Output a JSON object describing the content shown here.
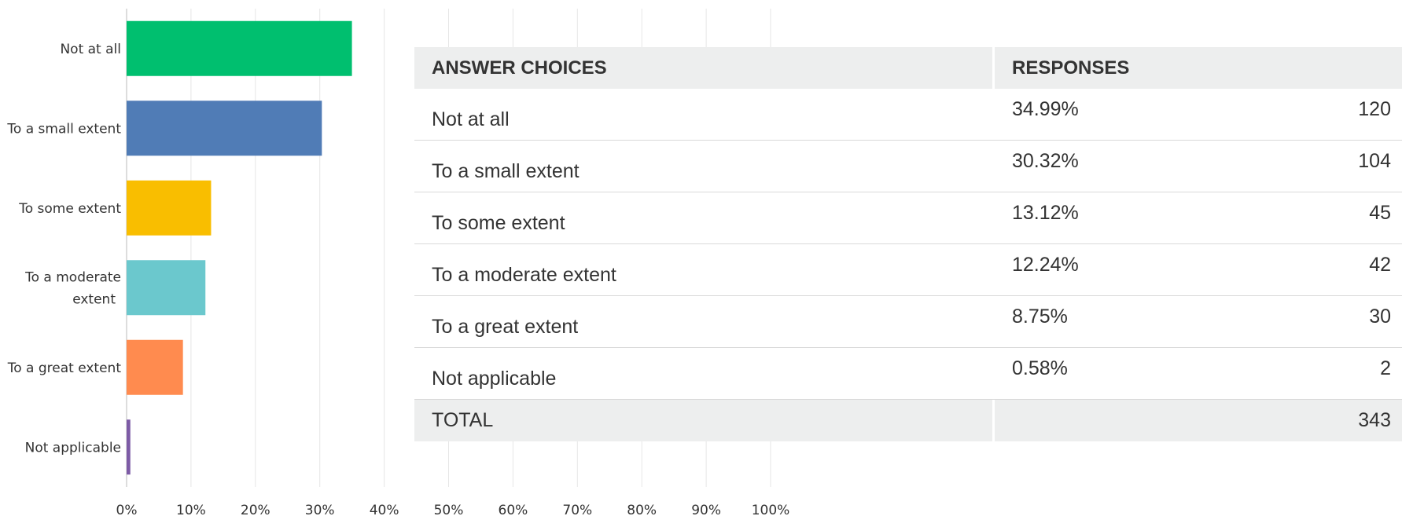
{
  "chart_data": {
    "type": "bar",
    "orientation": "horizontal",
    "categories": [
      "Not at all",
      "To a small extent",
      "To some extent",
      "To a moderate extent",
      "To a great extent",
      "Not applicable"
    ],
    "values": [
      34.99,
      30.32,
      13.12,
      12.24,
      8.75,
      0.58
    ],
    "colors": [
      "#00bf6f",
      "#507cb6",
      "#f9be00",
      "#6bc8cd",
      "#ff8b4f",
      "#7d5ba6"
    ],
    "xlim": [
      0,
      100
    ],
    "xticks": [
      {
        "value": 0,
        "label": "0%"
      },
      {
        "value": 10,
        "label": "10%"
      },
      {
        "value": 20,
        "label": "20%"
      },
      {
        "value": 30,
        "label": "30%"
      },
      {
        "value": 40,
        "label": "40%"
      },
      {
        "value": 50,
        "label": "50%"
      },
      {
        "value": 60,
        "label": "60%"
      },
      {
        "value": 70,
        "label": "70%"
      },
      {
        "value": 80,
        "label": "80%"
      },
      {
        "value": 90,
        "label": "90%"
      },
      {
        "value": 100,
        "label": "100%"
      }
    ],
    "grid": true
  },
  "table": {
    "header": [
      "ANSWER CHOICES",
      "RESPONSES"
    ],
    "rows": [
      [
        "Not at all",
        "34.99%",
        120
      ],
      [
        "To a small extent",
        "30.32%",
        104
      ],
      [
        "To some extent",
        "13.12%",
        45
      ],
      [
        "To a moderate extent",
        "12.24%",
        42
      ],
      [
        "To a great extent",
        "8.75%",
        30
      ],
      [
        "Not applicable",
        "0.58%",
        2
      ]
    ],
    "total": [
      "TOTAL",
      343
    ]
  }
}
